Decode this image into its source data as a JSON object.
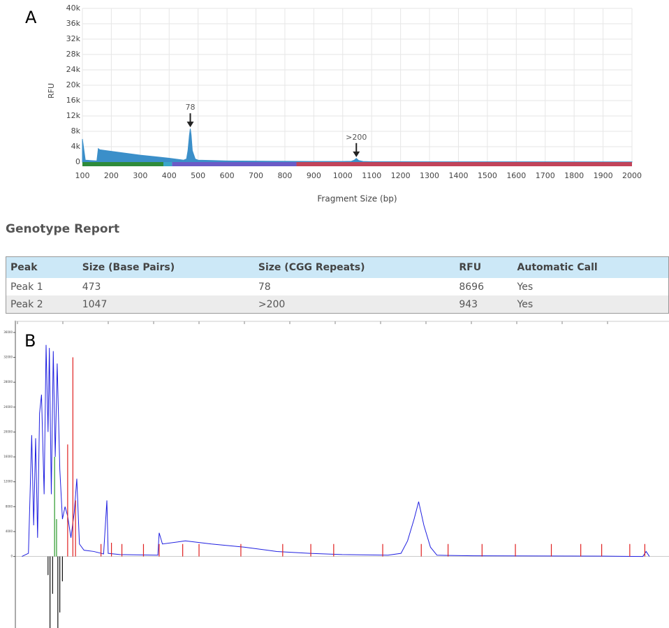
{
  "chart_data": [
    {
      "type": "area",
      "panel": "A",
      "y_label": "RFU",
      "x_label": "Fragment Size (bp)",
      "xlim": [
        100,
        2000
      ],
      "ylim": [
        0,
        40000
      ],
      "xticks": [
        100,
        200,
        300,
        400,
        500,
        600,
        700,
        800,
        900,
        1000,
        1100,
        1200,
        1300,
        1400,
        1500,
        1600,
        1700,
        1800,
        1900,
        2000
      ],
      "yticks": [
        0,
        {
          "value": 4000,
          "label": "4k"
        },
        {
          "value": 8000,
          "label": "8k"
        },
        {
          "value": 12000,
          "label": "12k"
        },
        {
          "value": 16000,
          "label": "16k"
        },
        {
          "value": 20000,
          "label": "20k"
        },
        {
          "value": 24000,
          "label": "24k"
        },
        {
          "value": 28000,
          "label": "28k"
        },
        {
          "value": 32000,
          "label": "32k"
        },
        {
          "value": 36000,
          "label": "36k"
        },
        {
          "value": 40000,
          "label": "40k"
        }
      ],
      "grid": true,
      "series": [
        {
          "color": "#3b8fc9",
          "x": [
            100,
            110,
            150,
            155,
            160,
            200,
            250,
            300,
            350,
            400,
            430,
            450,
            460,
            465,
            470,
            473,
            476,
            480,
            490,
            500,
            550,
            600,
            700,
            800,
            900,
            1000,
            1030,
            1040,
            1047,
            1055,
            1070,
            1100,
            1200,
            1500,
            2000
          ],
          "values": [
            6000,
            500,
            300,
            3500,
            3200,
            2800,
            2300,
            1800,
            1400,
            1000,
            700,
            500,
            800,
            3000,
            7000,
            8696,
            7000,
            3000,
            800,
            500,
            400,
            300,
            250,
            200,
            150,
            150,
            200,
            500,
            943,
            400,
            150,
            100,
            80,
            60,
            50
          ]
        }
      ],
      "annotations": [
        {
          "text": "78",
          "x": 473,
          "y": 8696
        },
        {
          "text": ">200",
          "x": 1047,
          "y": 943
        }
      ],
      "size_bands": [
        {
          "start": 100,
          "end": 380,
          "color": "#2e8b3a"
        },
        {
          "start": 380,
          "end": 410,
          "color": "#3aa6c9"
        },
        {
          "start": 410,
          "end": 840,
          "color": "#6b5bc6"
        },
        {
          "start": 840,
          "end": 2000,
          "color": "#c2445a"
        }
      ]
    },
    {
      "type": "trace",
      "panel": "B",
      "xlim": [
        0,
        1000
      ],
      "ylim": [
        -11500,
        37000
      ],
      "yticks": [
        0,
        4000,
        8000,
        12000,
        16000,
        20000,
        24000,
        28000,
        32000,
        36000
      ],
      "series": [
        {
          "color": "#1f1fe0",
          "style": "line",
          "x": [
            10,
            20,
            25,
            28,
            31,
            34,
            37,
            40,
            44,
            47,
            50,
            52,
            55,
            58,
            61,
            64,
            68,
            72,
            76,
            80,
            85,
            90,
            94,
            98,
            105,
            120,
            135,
            140,
            142,
            160,
            218,
            220,
            225,
            260,
            300,
            350,
            400,
            450,
            500,
            570,
            590,
            600,
            610,
            617,
            625,
            635,
            645,
            700,
            900,
            960,
            965,
            970
          ],
          "values": [
            0,
            500,
            19500,
            5000,
            19000,
            3000,
            23000,
            26000,
            10000,
            34000,
            20000,
            33500,
            10000,
            33000,
            16000,
            31000,
            14000,
            6000,
            8000,
            6500,
            3000,
            7000,
            12500,
            2000,
            1000,
            800,
            400,
            9000,
            500,
            300,
            200,
            3800,
            2000,
            2500,
            2000,
            1500,
            800,
            500,
            300,
            200,
            500,
            2500,
            6000,
            8800,
            5000,
            1500,
            200,
            100,
            50,
            0,
            800,
            0
          ]
        },
        {
          "color": "#e02020",
          "style": "spikes",
          "x": [
            80,
            88,
            92,
            131,
            147,
            163,
            196,
            220,
            256,
            281,
            345,
            409,
            452,
            487,
            562,
            621,
            662,
            714,
            765,
            820,
            865,
            897,
            940,
            963
          ],
          "values": [
            18000,
            32000,
            9000,
            2000,
            2200,
            2000,
            2000,
            2000,
            2000,
            2000,
            2000,
            2000,
            2000,
            2000,
            2000,
            2000,
            2000,
            2000,
            2000,
            2000,
            2000,
            2000,
            2000,
            2000
          ]
        },
        {
          "color": "#2a9a2a",
          "style": "spikes",
          "x": [
            60,
            63
          ],
          "values": [
            16000,
            6000
          ]
        },
        {
          "color": "#111111",
          "style": "spikes",
          "x": [
            50,
            53,
            57,
            65,
            68,
            72
          ],
          "values": [
            -3000,
            -11500,
            -6000,
            -11500,
            -9000,
            -4000
          ]
        }
      ]
    }
  ],
  "report": {
    "title": "Genotype Report",
    "table": {
      "header": [
        "Peak",
        "Size (Base Pairs)",
        "Size (CGG Repeats)",
        "RFU",
        "Automatic Call"
      ],
      "rows": [
        [
          "Peak 1",
          "473",
          "78",
          "8696",
          "Yes"
        ],
        [
          "Peak 2",
          "1047",
          ">200",
          "943",
          "Yes"
        ]
      ]
    }
  }
}
